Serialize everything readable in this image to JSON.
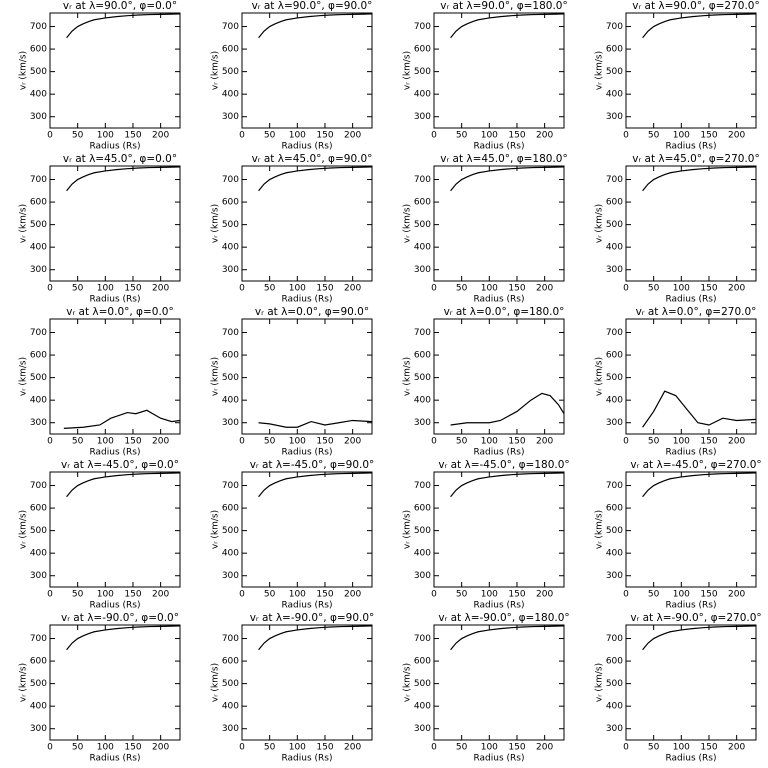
{
  "chart_data": [
    {
      "type": "line",
      "title": "vᵣ at λ=90.0°, φ=0.0°",
      "xlabel": "Radius (Rs)",
      "ylabel": "vᵣ (km/s)",
      "x": [
        30,
        40,
        50,
        60,
        70,
        80,
        100,
        120,
        140,
        160,
        180,
        200,
        220,
        235
      ],
      "values": [
        650,
        680,
        700,
        712,
        722,
        730,
        738,
        744,
        748,
        751,
        753,
        754,
        755,
        756
      ],
      "xlim": [
        0,
        235
      ],
      "ylim": [
        250,
        760
      ],
      "xticks": [
        0,
        50,
        100,
        150,
        200
      ],
      "yticks": [
        300,
        400,
        500,
        600,
        700
      ],
      "color": "#000000"
    },
    {
      "type": "line",
      "title": "vᵣ at λ=90.0°, φ=90.0°",
      "xlabel": "Radius (Rs)",
      "ylabel": "vᵣ (km/s)",
      "x": [
        30,
        40,
        50,
        60,
        70,
        80,
        100,
        120,
        140,
        160,
        180,
        200,
        220,
        235
      ],
      "values": [
        650,
        680,
        700,
        712,
        722,
        730,
        738,
        744,
        748,
        751,
        753,
        754,
        755,
        756
      ],
      "xlim": [
        0,
        235
      ],
      "ylim": [
        250,
        760
      ],
      "xticks": [
        0,
        50,
        100,
        150,
        200
      ],
      "yticks": [
        300,
        400,
        500,
        600,
        700
      ],
      "color": "#000000"
    },
    {
      "type": "line",
      "title": "vᵣ at λ=90.0°, φ=180.0°",
      "xlabel": "Radius (Rs)",
      "ylabel": "vᵣ (km/s)",
      "x": [
        30,
        40,
        50,
        60,
        70,
        80,
        100,
        120,
        140,
        160,
        180,
        200,
        220,
        235
      ],
      "values": [
        650,
        680,
        700,
        712,
        722,
        730,
        738,
        744,
        748,
        751,
        753,
        754,
        755,
        756
      ],
      "xlim": [
        0,
        235
      ],
      "ylim": [
        250,
        760
      ],
      "xticks": [
        0,
        50,
        100,
        150,
        200
      ],
      "yticks": [
        300,
        400,
        500,
        600,
        700
      ],
      "color": "#000000"
    },
    {
      "type": "line",
      "title": "vᵣ at λ=90.0°, φ=270.0°",
      "xlabel": "Radius (Rs)",
      "ylabel": "vᵣ (km/s)",
      "x": [
        30,
        40,
        50,
        60,
        70,
        80,
        100,
        120,
        140,
        160,
        180,
        200,
        220,
        235
      ],
      "values": [
        650,
        680,
        700,
        712,
        722,
        730,
        738,
        744,
        748,
        751,
        753,
        754,
        755,
        756
      ],
      "xlim": [
        0,
        235
      ],
      "ylim": [
        250,
        760
      ],
      "xticks": [
        0,
        50,
        100,
        150,
        200
      ],
      "yticks": [
        300,
        400,
        500,
        600,
        700
      ],
      "color": "#000000"
    },
    {
      "type": "line",
      "title": "vᵣ at λ=45.0°, φ=0.0°",
      "xlabel": "Radius (Rs)",
      "ylabel": "vᵣ (km/s)",
      "x": [
        30,
        40,
        50,
        60,
        70,
        80,
        100,
        120,
        140,
        160,
        180,
        200,
        220,
        235
      ],
      "values": [
        650,
        680,
        700,
        712,
        722,
        730,
        738,
        744,
        748,
        751,
        753,
        754,
        755,
        756
      ],
      "xlim": [
        0,
        235
      ],
      "ylim": [
        250,
        760
      ],
      "xticks": [
        0,
        50,
        100,
        150,
        200
      ],
      "yticks": [
        300,
        400,
        500,
        600,
        700
      ],
      "color": "#000000"
    },
    {
      "type": "line",
      "title": "vᵣ at λ=45.0°, φ=90.0°",
      "xlabel": "Radius (Rs)",
      "ylabel": "vᵣ (km/s)",
      "x": [
        30,
        40,
        50,
        60,
        70,
        80,
        100,
        120,
        140,
        160,
        180,
        200,
        220,
        235
      ],
      "values": [
        650,
        680,
        700,
        712,
        722,
        730,
        738,
        744,
        748,
        751,
        753,
        754,
        755,
        756
      ],
      "xlim": [
        0,
        235
      ],
      "ylim": [
        250,
        760
      ],
      "xticks": [
        0,
        50,
        100,
        150,
        200
      ],
      "yticks": [
        300,
        400,
        500,
        600,
        700
      ],
      "color": "#000000"
    },
    {
      "type": "line",
      "title": "vᵣ at λ=45.0°, φ=180.0°",
      "xlabel": "Radius (Rs)",
      "ylabel": "vᵣ (km/s)",
      "x": [
        30,
        40,
        50,
        60,
        70,
        80,
        100,
        120,
        140,
        160,
        180,
        200,
        220,
        235
      ],
      "values": [
        650,
        680,
        700,
        712,
        722,
        730,
        738,
        744,
        748,
        751,
        753,
        754,
        755,
        756
      ],
      "xlim": [
        0,
        235
      ],
      "ylim": [
        250,
        760
      ],
      "xticks": [
        0,
        50,
        100,
        150,
        200
      ],
      "yticks": [
        300,
        400,
        500,
        600,
        700
      ],
      "color": "#000000"
    },
    {
      "type": "line",
      "title": "vᵣ at λ=45.0°, φ=270.0°",
      "xlabel": "Radius (Rs)",
      "ylabel": "vᵣ (km/s)",
      "x": [
        30,
        40,
        50,
        60,
        70,
        80,
        100,
        120,
        140,
        160,
        180,
        200,
        220,
        235
      ],
      "values": [
        650,
        680,
        700,
        712,
        722,
        730,
        738,
        744,
        748,
        751,
        753,
        754,
        755,
        756
      ],
      "xlim": [
        0,
        235
      ],
      "ylim": [
        250,
        760
      ],
      "xticks": [
        0,
        50,
        100,
        150,
        200
      ],
      "yticks": [
        300,
        400,
        500,
        600,
        700
      ],
      "color": "#000000"
    },
    {
      "type": "line",
      "title": "vᵣ at λ=0.0°, φ=0.0°",
      "xlabel": "Radius (Rs)",
      "ylabel": "vᵣ (km/s)",
      "x": [
        25,
        60,
        90,
        110,
        140,
        155,
        175,
        200,
        220,
        235
      ],
      "values": [
        275,
        280,
        290,
        320,
        345,
        340,
        355,
        320,
        305,
        310
      ],
      "xlim": [
        0,
        235
      ],
      "ylim": [
        250,
        760
      ],
      "xticks": [
        0,
        50,
        100,
        150,
        200
      ],
      "yticks": [
        300,
        400,
        500,
        600,
        700
      ],
      "color": "#000000"
    },
    {
      "type": "line",
      "title": "vᵣ at λ=0.0°, φ=90.0°",
      "xlabel": "Radius (Rs)",
      "ylabel": "vᵣ (km/s)",
      "x": [
        30,
        50,
        80,
        100,
        125,
        150,
        175,
        200,
        235
      ],
      "values": [
        300,
        295,
        280,
        280,
        305,
        290,
        300,
        310,
        305
      ],
      "xlim": [
        0,
        235
      ],
      "ylim": [
        250,
        760
      ],
      "xticks": [
        0,
        50,
        100,
        150,
        200
      ],
      "yticks": [
        300,
        400,
        500,
        600,
        700
      ],
      "color": "#000000"
    },
    {
      "type": "line",
      "title": "vᵣ at λ=0.0°, φ=180.0°",
      "xlabel": "Radius (Rs)",
      "ylabel": "vᵣ (km/s)",
      "x": [
        30,
        60,
        100,
        120,
        150,
        175,
        195,
        210,
        225,
        235
      ],
      "values": [
        290,
        300,
        300,
        310,
        350,
        400,
        430,
        420,
        380,
        340
      ],
      "xlim": [
        0,
        235
      ],
      "ylim": [
        250,
        760
      ],
      "xticks": [
        0,
        50,
        100,
        150,
        200
      ],
      "yticks": [
        300,
        400,
        500,
        600,
        700
      ],
      "color": "#000000"
    },
    {
      "type": "line",
      "title": "vᵣ at λ=0.0°, φ=270.0°",
      "xlabel": "Radius (Rs)",
      "ylabel": "vᵣ (km/s)",
      "x": [
        30,
        50,
        70,
        90,
        110,
        130,
        150,
        175,
        200,
        235
      ],
      "values": [
        280,
        350,
        440,
        420,
        360,
        300,
        290,
        320,
        310,
        315
      ],
      "xlim": [
        0,
        235
      ],
      "ylim": [
        250,
        760
      ],
      "xticks": [
        0,
        50,
        100,
        150,
        200
      ],
      "yticks": [
        300,
        400,
        500,
        600,
        700
      ],
      "color": "#000000"
    },
    {
      "type": "line",
      "title": "vᵣ at λ=-45.0°, φ=0.0°",
      "xlabel": "Radius (Rs)",
      "ylabel": "vᵣ (km/s)",
      "x": [
        30,
        40,
        50,
        60,
        70,
        80,
        100,
        120,
        140,
        160,
        180,
        200,
        220,
        235
      ],
      "values": [
        650,
        680,
        700,
        712,
        722,
        730,
        738,
        744,
        748,
        751,
        753,
        754,
        755,
        756
      ],
      "xlim": [
        0,
        235
      ],
      "ylim": [
        250,
        760
      ],
      "xticks": [
        0,
        50,
        100,
        150,
        200
      ],
      "yticks": [
        300,
        400,
        500,
        600,
        700
      ],
      "color": "#000000"
    },
    {
      "type": "line",
      "title": "vᵣ at λ=-45.0°, φ=90.0°",
      "xlabel": "Radius (Rs)",
      "ylabel": "vᵣ (km/s)",
      "x": [
        30,
        40,
        50,
        60,
        70,
        80,
        100,
        120,
        140,
        160,
        180,
        200,
        220,
        235
      ],
      "values": [
        650,
        680,
        700,
        712,
        722,
        730,
        738,
        744,
        748,
        751,
        753,
        754,
        755,
        756
      ],
      "xlim": [
        0,
        235
      ],
      "ylim": [
        250,
        760
      ],
      "xticks": [
        0,
        50,
        100,
        150,
        200
      ],
      "yticks": [
        300,
        400,
        500,
        600,
        700
      ],
      "color": "#000000"
    },
    {
      "type": "line",
      "title": "vᵣ at λ=-45.0°, φ=180.0°",
      "xlabel": "Radius (Rs)",
      "ylabel": "vᵣ (km/s)",
      "x": [
        30,
        40,
        50,
        60,
        70,
        80,
        100,
        120,
        140,
        160,
        180,
        200,
        220,
        235
      ],
      "values": [
        650,
        680,
        700,
        712,
        722,
        730,
        738,
        744,
        748,
        751,
        753,
        754,
        755,
        756
      ],
      "xlim": [
        0,
        235
      ],
      "ylim": [
        250,
        760
      ],
      "xticks": [
        0,
        50,
        100,
        150,
        200
      ],
      "yticks": [
        300,
        400,
        500,
        600,
        700
      ],
      "color": "#000000"
    },
    {
      "type": "line",
      "title": "vᵣ at λ=-45.0°, φ=270.0°",
      "xlabel": "Radius (Rs)",
      "ylabel": "vᵣ (km/s)",
      "x": [
        30,
        40,
        50,
        60,
        70,
        80,
        100,
        120,
        140,
        160,
        180,
        200,
        220,
        235
      ],
      "values": [
        650,
        680,
        700,
        712,
        722,
        730,
        738,
        744,
        748,
        751,
        753,
        754,
        755,
        756
      ],
      "xlim": [
        0,
        235
      ],
      "ylim": [
        250,
        760
      ],
      "xticks": [
        0,
        50,
        100,
        150,
        200
      ],
      "yticks": [
        300,
        400,
        500,
        600,
        700
      ],
      "color": "#000000"
    },
    {
      "type": "line",
      "title": "vᵣ at λ=-90.0°, φ=0.0°",
      "xlabel": "Radius (Rs)",
      "ylabel": "vᵣ (km/s)",
      "x": [
        30,
        40,
        50,
        60,
        70,
        80,
        100,
        120,
        140,
        160,
        180,
        200,
        220,
        235
      ],
      "values": [
        650,
        680,
        700,
        712,
        722,
        730,
        738,
        744,
        748,
        751,
        753,
        754,
        755,
        756
      ],
      "xlim": [
        0,
        235
      ],
      "ylim": [
        250,
        760
      ],
      "xticks": [
        0,
        50,
        100,
        150,
        200
      ],
      "yticks": [
        300,
        400,
        500,
        600,
        700
      ],
      "color": "#000000"
    },
    {
      "type": "line",
      "title": "vᵣ at λ=-90.0°, φ=90.0°",
      "xlabel": "Radius (Rs)",
      "ylabel": "vᵣ (km/s)",
      "x": [
        30,
        40,
        50,
        60,
        70,
        80,
        100,
        120,
        140,
        160,
        180,
        200,
        220,
        235
      ],
      "values": [
        650,
        680,
        700,
        712,
        722,
        730,
        738,
        744,
        748,
        751,
        753,
        754,
        755,
        756
      ],
      "xlim": [
        0,
        235
      ],
      "ylim": [
        250,
        760
      ],
      "xticks": [
        0,
        50,
        100,
        150,
        200
      ],
      "yticks": [
        300,
        400,
        500,
        600,
        700
      ],
      "color": "#000000"
    },
    {
      "type": "line",
      "title": "vᵣ at λ=-90.0°, φ=180.0°",
      "xlabel": "Radius (Rs)",
      "ylabel": "vᵣ (km/s)",
      "x": [
        30,
        40,
        50,
        60,
        70,
        80,
        100,
        120,
        140,
        160,
        180,
        200,
        220,
        235
      ],
      "values": [
        650,
        680,
        700,
        712,
        722,
        730,
        738,
        744,
        748,
        751,
        753,
        754,
        755,
        756
      ],
      "xlim": [
        0,
        235
      ],
      "ylim": [
        250,
        760
      ],
      "xticks": [
        0,
        50,
        100,
        150,
        200
      ],
      "yticks": [
        300,
        400,
        500,
        600,
        700
      ],
      "color": "#000000"
    },
    {
      "type": "line",
      "title": "vᵣ at λ=-90.0°, φ=270.0°",
      "xlabel": "Radius (Rs)",
      "ylabel": "vᵣ (km/s)",
      "x": [
        30,
        40,
        50,
        60,
        70,
        80,
        100,
        120,
        140,
        160,
        180,
        200,
        220,
        235
      ],
      "values": [
        650,
        680,
        700,
        712,
        722,
        730,
        738,
        744,
        748,
        751,
        753,
        754,
        755,
        756
      ],
      "xlim": [
        0,
        235
      ],
      "ylim": [
        250,
        760
      ],
      "xticks": [
        0,
        50,
        100,
        150,
        200
      ],
      "yticks": [
        300,
        400,
        500,
        600,
        700
      ],
      "color": "#000000"
    }
  ]
}
